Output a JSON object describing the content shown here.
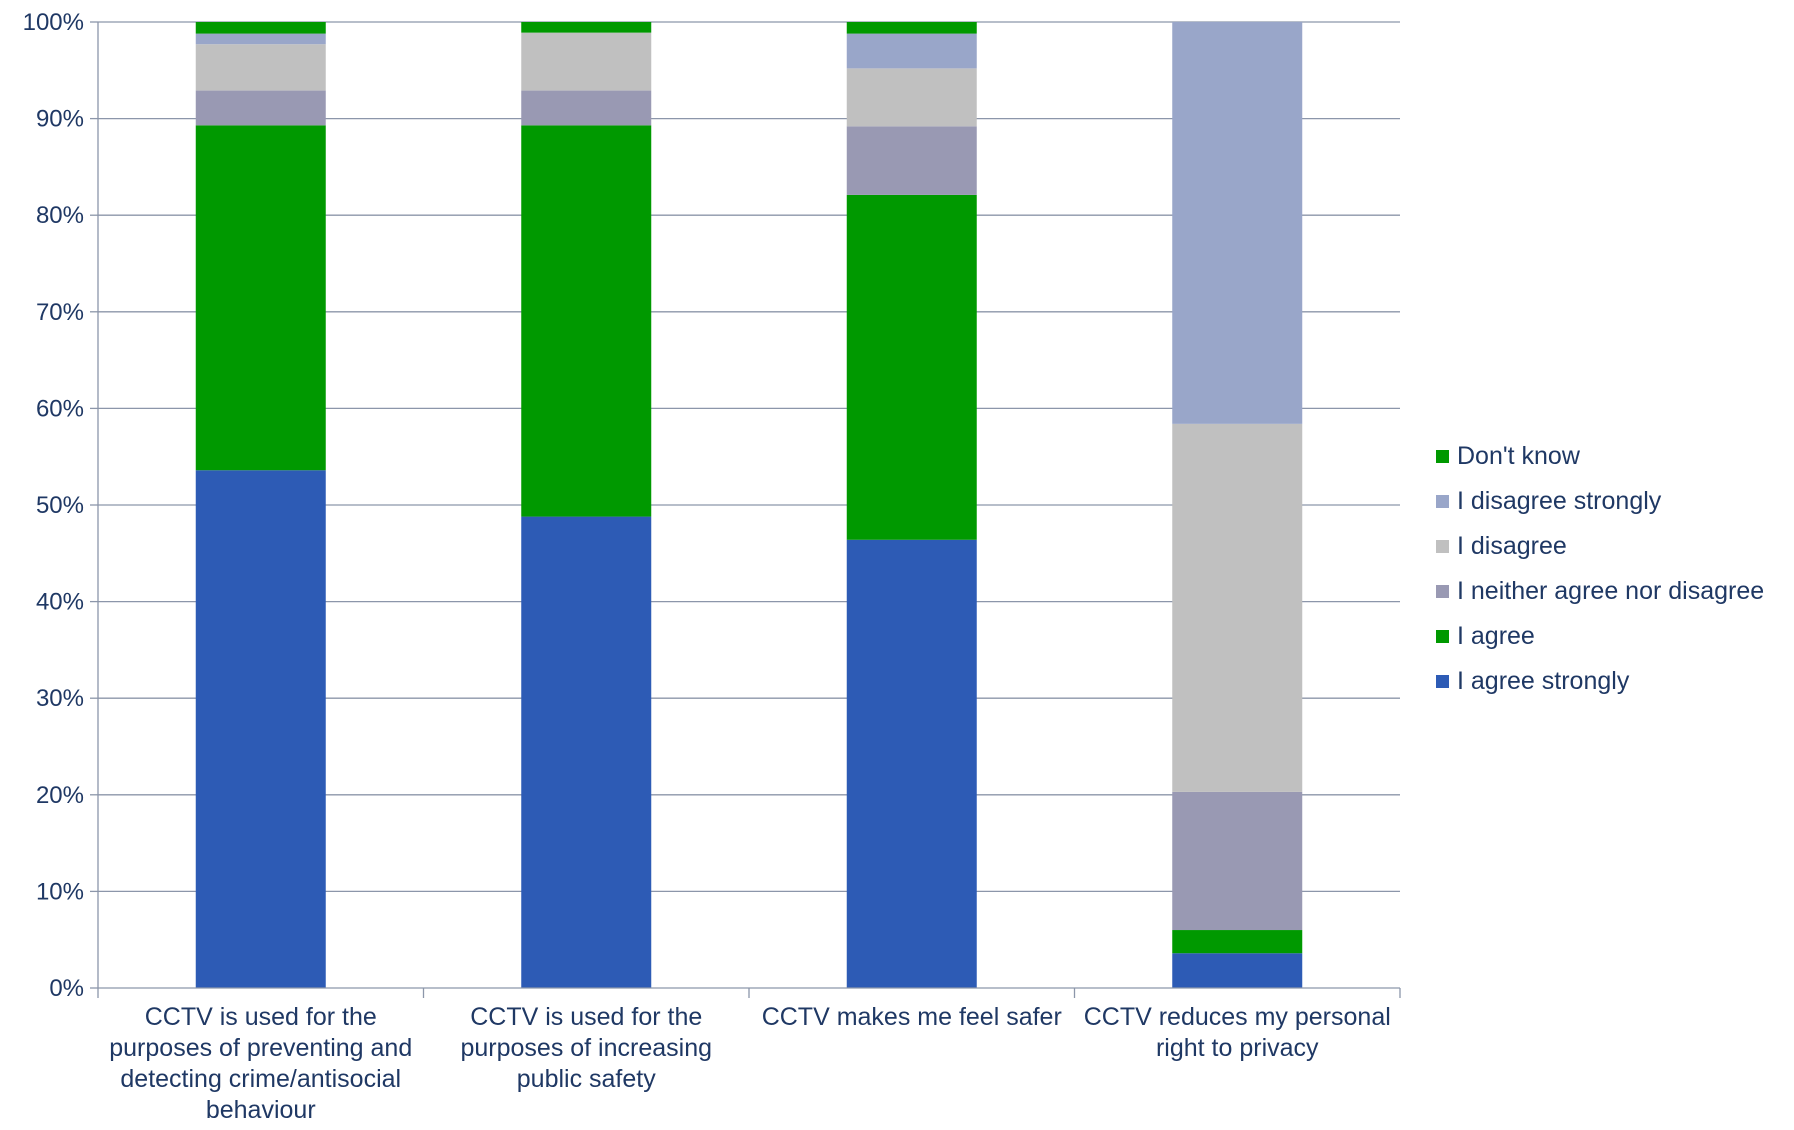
{
  "chart_data": {
    "type": "bar",
    "stacked": true,
    "percent": true,
    "title": "",
    "xlabel": "",
    "ylabel": "",
    "ylim": [
      0,
      100
    ],
    "yticks": [
      "0%",
      "10%",
      "20%",
      "30%",
      "40%",
      "50%",
      "60%",
      "70%",
      "80%",
      "90%",
      "100%"
    ],
    "grid": true,
    "legend_position": "right",
    "categories": [
      "CCTV is used for the purposes of preventing and detecting crime/antisocial behaviour",
      "CCTV is used for the purposes of increasing public safety",
      "CCTV makes me feel safer",
      "CCTV reduces my personal right to privacy"
    ],
    "series": [
      {
        "name": "I agree strongly",
        "color": "#2d5bb5",
        "values": [
          53.6,
          48.8,
          46.4,
          3.6
        ]
      },
      {
        "name": "I agree",
        "color": "#009900",
        "values": [
          35.7,
          40.5,
          35.7,
          2.4
        ]
      },
      {
        "name": "I neither agree nor disagree",
        "color": "#9999b3",
        "values": [
          3.6,
          3.6,
          7.1,
          14.3
        ]
      },
      {
        "name": "I disagree",
        "color": "#c0c0c0",
        "values": [
          4.8,
          6.0,
          6.0,
          38.1
        ]
      },
      {
        "name": "I disagree strongly",
        "color": "#99a6c9",
        "values": [
          1.1,
          0.0,
          3.6,
          41.6
        ]
      },
      {
        "name": "Don't know",
        "color": "#009900",
        "values": [
          1.2,
          1.1,
          1.2,
          0.0
        ]
      }
    ]
  }
}
